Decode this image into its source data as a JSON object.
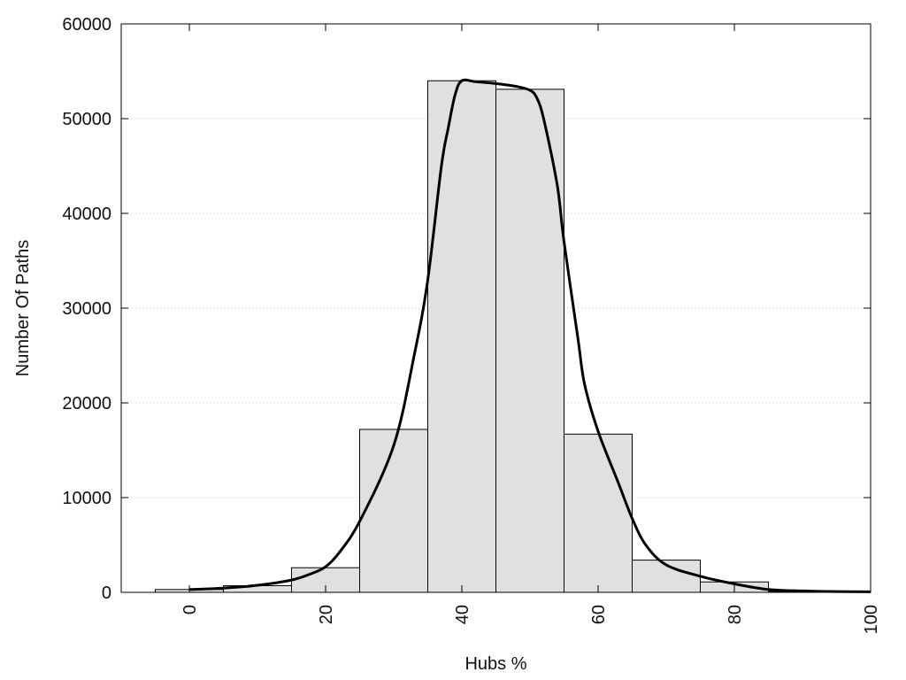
{
  "chart_data": {
    "type": "bar",
    "title": "",
    "xlabel": "Hubs %",
    "ylabel": "Number Of Paths",
    "xlim": [
      -10,
      100
    ],
    "ylim": [
      0,
      60000
    ],
    "grid": "horizontal dotted",
    "x_ticks": [
      0,
      20,
      40,
      60,
      80,
      100
    ],
    "y_ticks": [
      0,
      10000,
      20000,
      30000,
      40000,
      50000,
      60000
    ],
    "bin_width": 10,
    "bars": [
      {
        "x": 0,
        "value": 300
      },
      {
        "x": 10,
        "value": 700
      },
      {
        "x": 20,
        "value": 2600
      },
      {
        "x": 30,
        "value": 17200
      },
      {
        "x": 40,
        "value": 54000
      },
      {
        "x": 50,
        "value": 53100
      },
      {
        "x": 60,
        "value": 16700
      },
      {
        "x": 70,
        "value": 3400
      },
      {
        "x": 80,
        "value": 1100
      },
      {
        "x": 90,
        "value": 100
      }
    ],
    "curve": [
      [
        0,
        300
      ],
      [
        5,
        450
      ],
      [
        10,
        750
      ],
      [
        15,
        1300
      ],
      [
        18,
        2000
      ],
      [
        20,
        2700
      ],
      [
        22,
        4200
      ],
      [
        25,
        7500
      ],
      [
        30,
        15500
      ],
      [
        33,
        25000
      ],
      [
        35,
        33000
      ],
      [
        37,
        45000
      ],
      [
        38,
        49000
      ],
      [
        39,
        52500
      ],
      [
        40,
        54000
      ],
      [
        42,
        53900
      ],
      [
        45,
        53700
      ],
      [
        48,
        53400
      ],
      [
        50,
        53000
      ],
      [
        51,
        52200
      ],
      [
        52,
        50000
      ],
      [
        54,
        43000
      ],
      [
        55,
        37000
      ],
      [
        57,
        27000
      ],
      [
        58,
        22000
      ],
      [
        60,
        17000
      ],
      [
        63,
        11500
      ],
      [
        65,
        7800
      ],
      [
        67,
        5000
      ],
      [
        70,
        2900
      ],
      [
        75,
        1700
      ],
      [
        80,
        900
      ],
      [
        85,
        300
      ],
      [
        90,
        150
      ],
      [
        95,
        80
      ],
      [
        100,
        60
      ]
    ],
    "colors": {
      "bar_fill": "#e0e0e0",
      "bar_stroke": "#000000",
      "curve": "#000000",
      "grid": "#c8c8c8"
    }
  }
}
